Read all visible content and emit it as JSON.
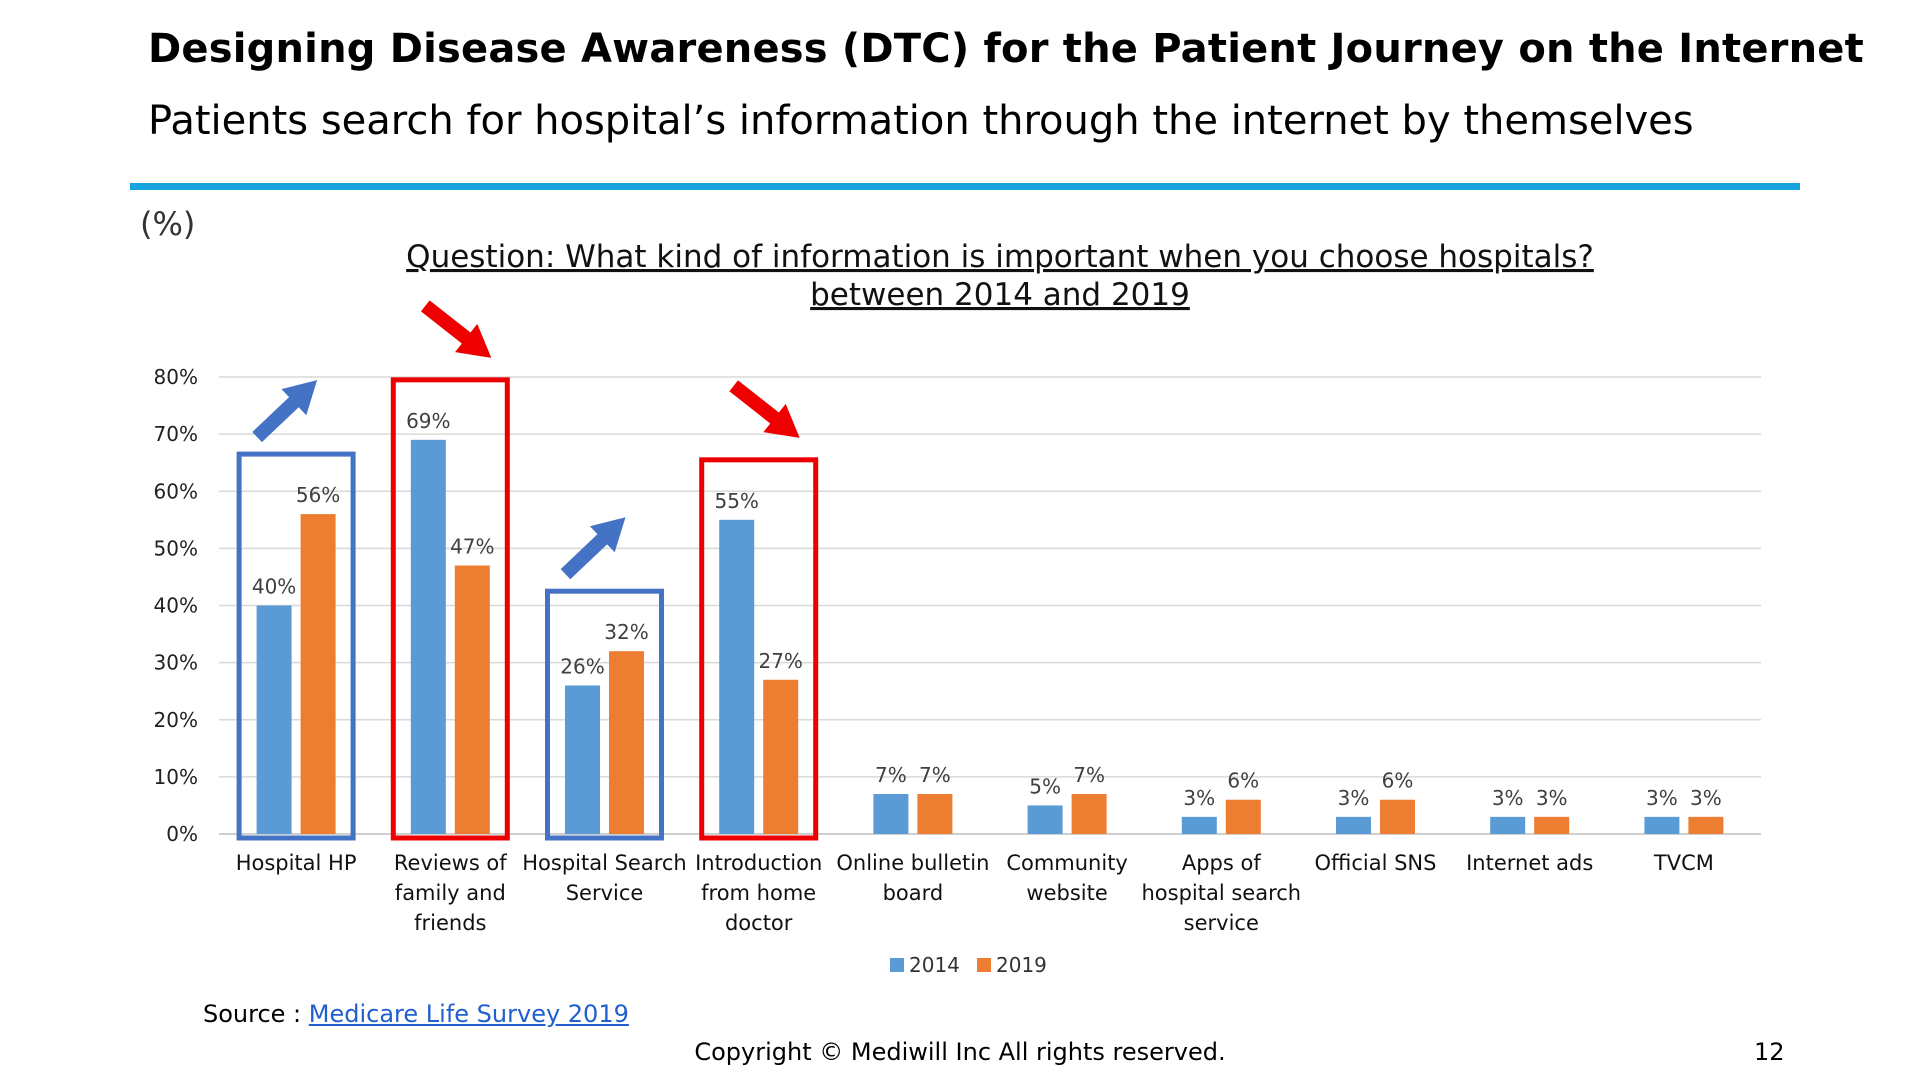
{
  "slide": {
    "title": "Designing Disease Awareness (DTC) for the Patient Journey on the Internet",
    "subtitle": "Patients search for hospital’s information through the internet by themselves",
    "source_prefix": "Source : ",
    "source_link": "Medicare Life Survey 2019",
    "copyright": "Copyright © Mediwill Inc All rights reserved.",
    "page_number": "12"
  },
  "chart_data": {
    "type": "bar",
    "unit_label": "(%)",
    "question_line1": "Question: What kind of information is important when you choose hospitals?",
    "question_line2": "between 2014 and 2019",
    "ylim": [
      0,
      80
    ],
    "yticks": [
      "0%",
      "10%",
      "20%",
      "30%",
      "40%",
      "50%",
      "60%",
      "70%",
      "80%"
    ],
    "grid": true,
    "legend_position": "bottom",
    "categories": [
      [
        "Hospital HP"
      ],
      [
        "Reviews of",
        "family and",
        "friends"
      ],
      [
        "Hospital Search",
        "Service"
      ],
      [
        "Introduction",
        "from home",
        "doctor"
      ],
      [
        "Online bulletin",
        "board"
      ],
      [
        "Community",
        "website"
      ],
      [
        "Apps of",
        "hospital search",
        "service"
      ],
      [
        "Official SNS"
      ],
      [
        "Internet ads"
      ],
      [
        "TVCM"
      ]
    ],
    "series": [
      {
        "name": "2014",
        "color": "#5b9bd5",
        "values": [
          40,
          69,
          26,
          55,
          7,
          5,
          3,
          3,
          3,
          3
        ],
        "labels": [
          "40%",
          "69%",
          "26%",
          "55%",
          "7%",
          "5%",
          "3%",
          "3%",
          "3%",
          "3%"
        ]
      },
      {
        "name": "2019",
        "color": "#ed7d31",
        "values": [
          56,
          47,
          32,
          27,
          7,
          7,
          6,
          6,
          3,
          3
        ],
        "labels": [
          "56%",
          "47%",
          "32%",
          "27%",
          "7%",
          "7%",
          "6%",
          "6%",
          "3%",
          "3%"
        ]
      }
    ],
    "highlights": [
      {
        "category_index": 0,
        "color": "#4472c4",
        "arrow": "up-right"
      },
      {
        "category_index": 1,
        "color": "#ee0000",
        "arrow": "down-right"
      },
      {
        "category_index": 2,
        "color": "#4472c4",
        "arrow": "up-right"
      },
      {
        "category_index": 3,
        "color": "#ee0000",
        "arrow": "down-right"
      }
    ]
  }
}
